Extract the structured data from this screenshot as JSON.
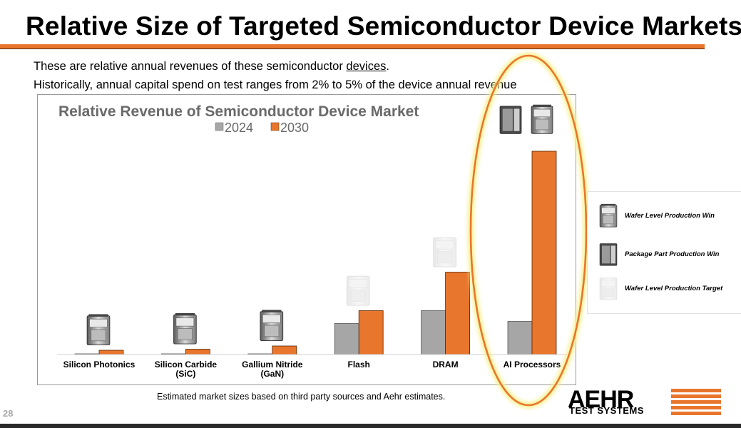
{
  "slide": {
    "title": "Relative Size of Targeted Semiconductor Device Markets",
    "intro_line1_prefix": "These are relative annual revenues of these semiconductor ",
    "intro_line1_link": "devices",
    "intro_line1_suffix": ".",
    "intro_line2": "Historically, annual capital spend on test ranges from 2% to 5% of the device annual revenue",
    "footnote": "Estimated market sizes based on third party sources and Aehr estimates.",
    "page_number": "28"
  },
  "logo": {
    "word": "AEHR",
    "subtitle": "TEST SYSTEMS"
  },
  "legend_icons": [
    {
      "label": "Wafer Level Production Win",
      "icon": "wafer-level-system-icon"
    },
    {
      "label": "Package Part Production Win",
      "icon": "package-part-system-icon"
    },
    {
      "label": "Wafer Level Production Target",
      "icon": "wafer-level-target-icon"
    }
  ],
  "colors": {
    "series_2024": "#a6a6a6",
    "series_2030": "#e8762d",
    "highlight": "#e8762d",
    "highlight_glow": "#f6f08c"
  },
  "chart_data": {
    "type": "bar",
    "title": "Relative Revenue of Semiconductor Device Market",
    "categories": [
      "Silicon Photonics",
      "Silicon Carbide\n(SiC)",
      "Gallium Nitride\n(GaN)",
      "Flash",
      "DRAM",
      "AI Processors"
    ],
    "series": [
      {
        "name": "2024",
        "color": "#a6a6a6",
        "values": [
          0.3,
          0.3,
          0.3,
          14.5,
          20.5,
          15.5
        ]
      },
      {
        "name": "2030",
        "color": "#e8762d",
        "values": [
          2.0,
          2.5,
          4.0,
          20.5,
          38.5,
          95.0
        ]
      }
    ],
    "category_icons": [
      "wafer-level-production-win",
      "wafer-level-production-win",
      "wafer-level-production-win",
      "wafer-level-production-target",
      "wafer-level-production-target",
      "wafer-and-package-production-win"
    ],
    "legend_position": "top-center",
    "grid": false,
    "ylim": [
      0,
      100
    ],
    "highlighted_category": "AI Processors"
  }
}
